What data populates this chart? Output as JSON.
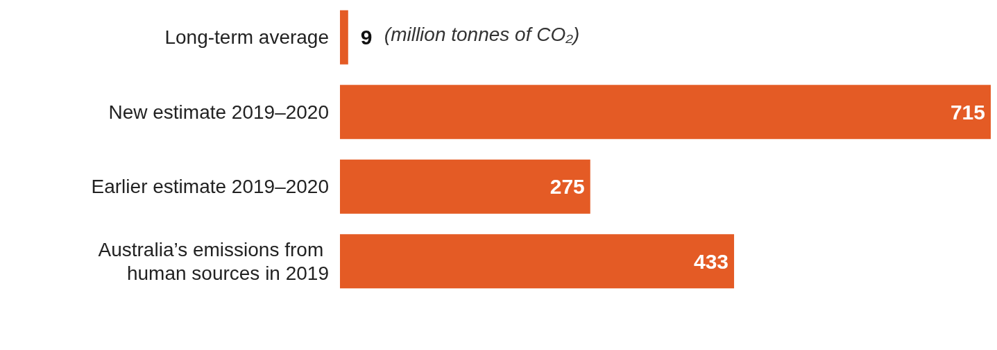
{
  "chart_data": {
    "type": "bar",
    "orientation": "horizontal",
    "categories": [
      "Long-term average",
      "New estimate 2019–2020",
      "Earlier estimate 2019–2020",
      "Australia’s emissions from human sources in 2019"
    ],
    "values": [
      9,
      715,
      275,
      433
    ],
    "color": "#e45b25",
    "data_labels": true,
    "annotations": [
      "(million tonnes of CO₂)"
    ]
  }
}
